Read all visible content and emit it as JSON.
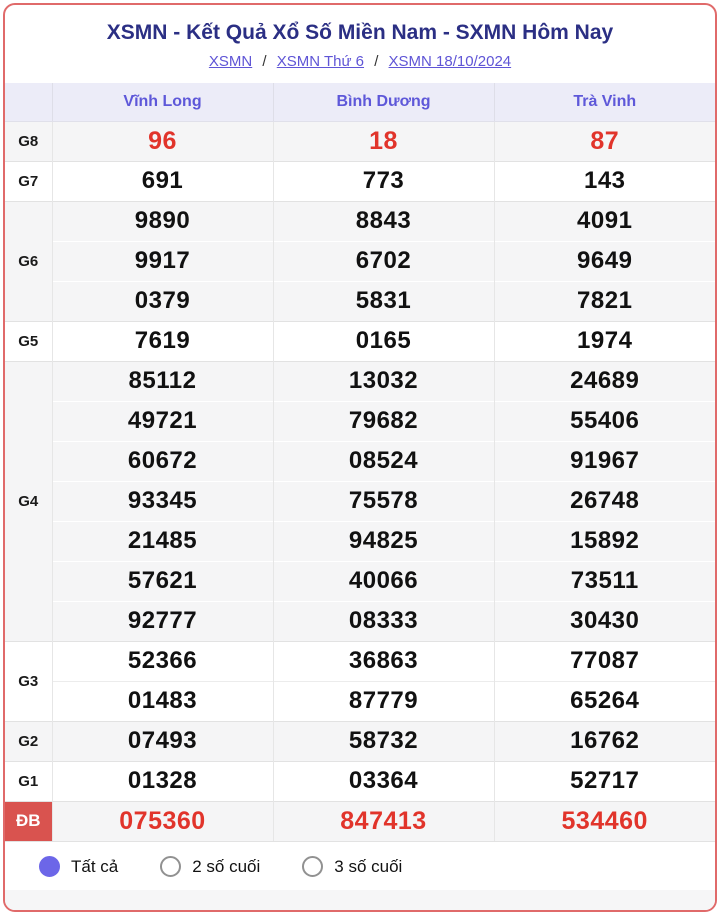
{
  "header": {
    "title": "XSMN - Kết Quả Xổ Số Miền Nam - SXMN Hôm Nay",
    "breadcrumb": [
      {
        "label": "XSMN"
      },
      {
        "label": "XSMN Thứ 6"
      },
      {
        "label": "XSMN 18/10/2024"
      }
    ],
    "breadcrumb_separator": "/"
  },
  "table": {
    "columns": [
      "Vĩnh Long",
      "Bình Dương",
      "Trà Vinh"
    ],
    "groups": [
      {
        "label": "G8",
        "rows": [
          [
            "96",
            "18",
            "87"
          ]
        ]
      },
      {
        "label": "G7",
        "rows": [
          [
            "691",
            "773",
            "143"
          ]
        ]
      },
      {
        "label": "G6",
        "rows": [
          [
            "9890",
            "8843",
            "4091"
          ],
          [
            "9917",
            "6702",
            "9649"
          ],
          [
            "0379",
            "5831",
            "7821"
          ]
        ]
      },
      {
        "label": "G5",
        "rows": [
          [
            "7619",
            "0165",
            "1974"
          ]
        ]
      },
      {
        "label": "G4",
        "rows": [
          [
            "85112",
            "13032",
            "24689"
          ],
          [
            "49721",
            "79682",
            "55406"
          ],
          [
            "60672",
            "08524",
            "91967"
          ],
          [
            "93345",
            "75578",
            "26748"
          ],
          [
            "21485",
            "94825",
            "15892"
          ],
          [
            "57621",
            "40066",
            "73511"
          ],
          [
            "92777",
            "08333",
            "30430"
          ]
        ]
      },
      {
        "label": "G3",
        "rows": [
          [
            "52366",
            "36863",
            "77087"
          ],
          [
            "01483",
            "87779",
            "65264"
          ]
        ]
      },
      {
        "label": "G2",
        "rows": [
          [
            "07493",
            "58732",
            "16762"
          ]
        ]
      },
      {
        "label": "G1",
        "rows": [
          [
            "01328",
            "03364",
            "52717"
          ]
        ]
      },
      {
        "label": "ĐB",
        "rows": [
          [
            "075360",
            "847413",
            "534460"
          ]
        ]
      }
    ]
  },
  "filters": {
    "options": [
      {
        "label": "Tất cả",
        "selected": true
      },
      {
        "label": "2 số cuối",
        "selected": false
      },
      {
        "label": "3 số cuối",
        "selected": false
      }
    ]
  },
  "colors": {
    "card_border": "#e06a6a",
    "title_navy": "#2b2f84",
    "link_purple": "#5f55d6",
    "column_header_purple": "#5e58d9",
    "header_row_bg": "#ececf8",
    "accent_red": "#e1342b",
    "db_label_bg": "#d9534f",
    "radio_purple": "#6c66e8",
    "row_gray": "#f5f5f6"
  }
}
